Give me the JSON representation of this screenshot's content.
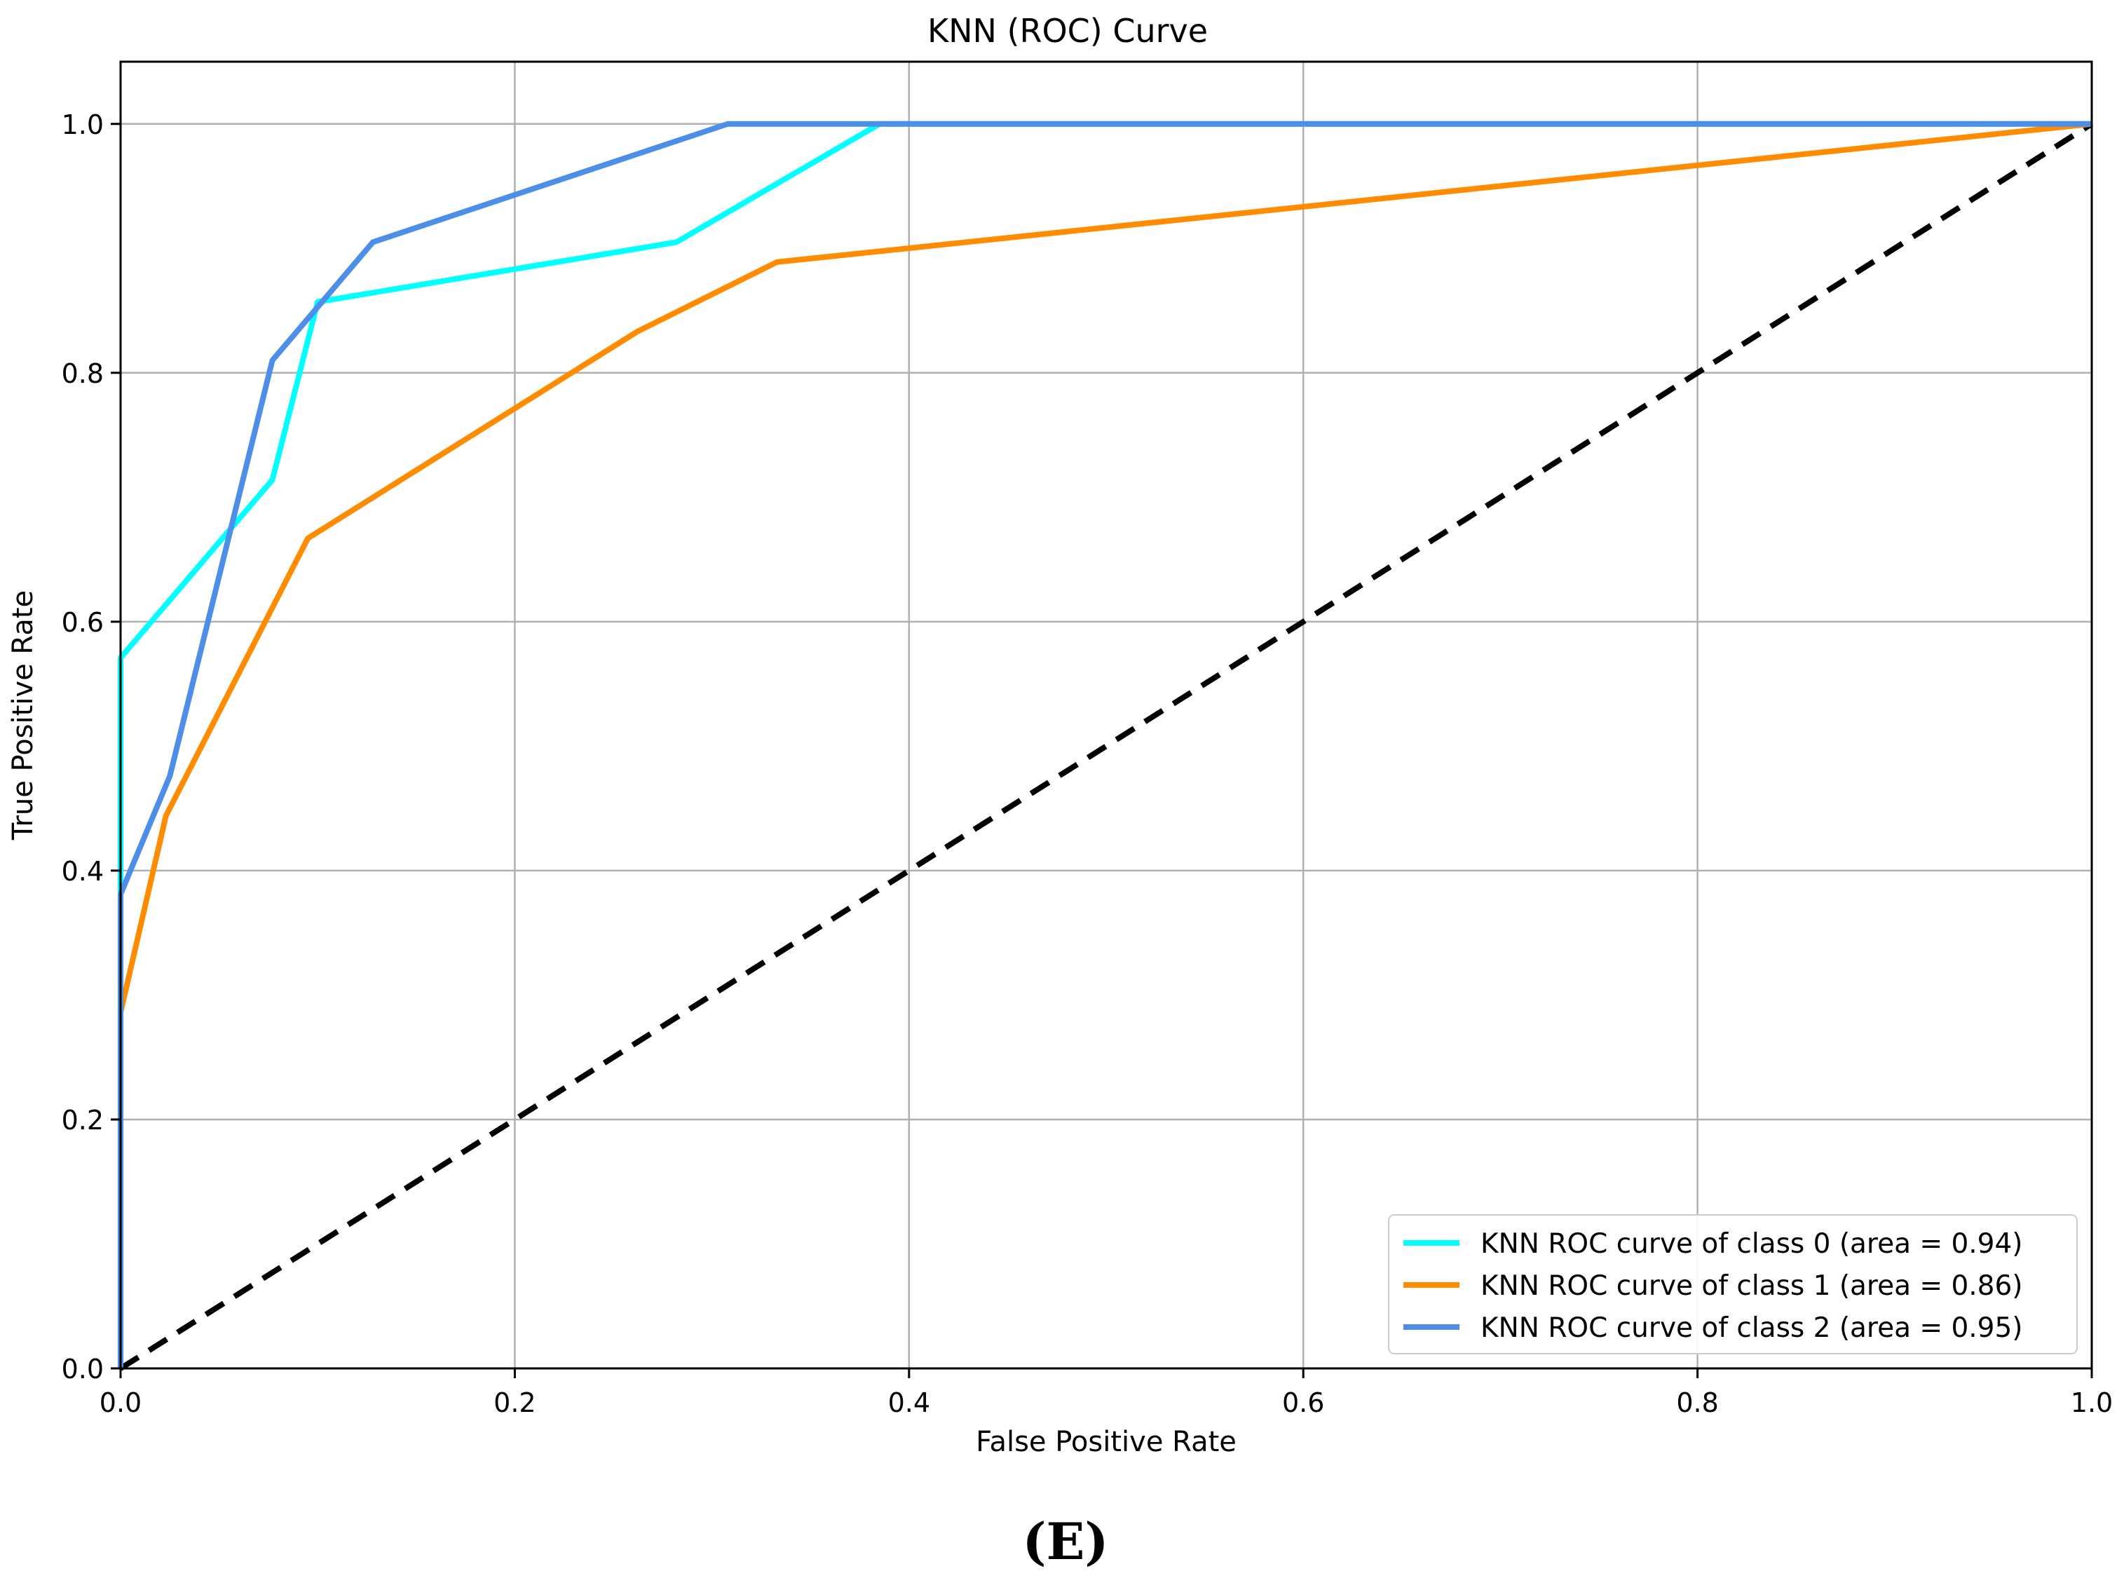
{
  "chart_data": {
    "type": "line",
    "title": "KNN (ROC) Curve",
    "xlabel": "False Positive Rate",
    "ylabel": "True Positive Rate",
    "xlim": [
      0.0,
      1.0
    ],
    "ylim": [
      0.0,
      1.05
    ],
    "xticks": [
      0.0,
      0.2,
      0.4,
      0.6,
      0.8,
      1.0
    ],
    "yticks": [
      0.0,
      0.2,
      0.4,
      0.6,
      0.8,
      1.0
    ],
    "xtick_labels": [
      "0.0",
      "0.2",
      "0.4",
      "0.6",
      "0.8",
      "1.0"
    ],
    "ytick_labels": [
      "0.0",
      "0.2",
      "0.4",
      "0.6",
      "0.8",
      "1.0"
    ],
    "grid": true,
    "legend_position": "lower-right",
    "series": [
      {
        "name": "KNN ROC curve of class 0 (area = 0.94)",
        "color": "#00FFFF",
        "style": "solid",
        "x": [
          0.0,
          0.0,
          0.077,
          0.1,
          0.282,
          0.385,
          1.0
        ],
        "y": [
          0.0,
          0.571,
          0.714,
          0.857,
          0.905,
          1.0,
          1.0
        ]
      },
      {
        "name": "KNN ROC curve of class 1 (area = 0.86)",
        "color": "#FF8C00",
        "style": "solid",
        "x": [
          0.0,
          0.0,
          0.023,
          0.095,
          0.262,
          0.333,
          1.0
        ],
        "y": [
          0.0,
          0.286,
          0.444,
          0.667,
          0.833,
          0.889,
          1.0
        ]
      },
      {
        "name": "KNN ROC curve of class 2 (area = 0.95)",
        "color": "#4C8EE8",
        "style": "solid",
        "x": [
          0.0,
          0.0,
          0.025,
          0.077,
          0.128,
          0.308,
          1.0
        ],
        "y": [
          0.0,
          0.381,
          0.476,
          0.81,
          0.905,
          1.0,
          1.0
        ]
      }
    ],
    "reference_line": {
      "x": [
        0.0,
        1.0
      ],
      "y": [
        0.0,
        1.0
      ],
      "color": "#000000",
      "style": "dashed"
    }
  },
  "caption": "(E)"
}
